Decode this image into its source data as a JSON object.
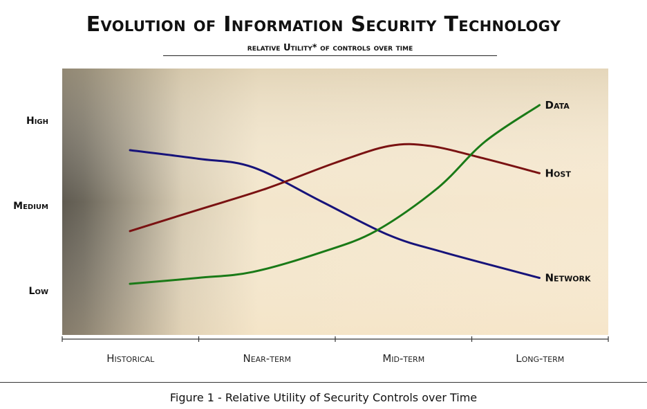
{
  "title": "Evolution of Information  Security Technology",
  "subtitle": "relative Utility* of controls over time",
  "caption": "Figure 1 - Relative Utility of Security Controls over Time",
  "colors": {
    "data": "#1a7a17",
    "host": "#7a1212",
    "network": "#17137a",
    "background_dark": "#5f5a50",
    "background_light": "#f6e8cf"
  },
  "chart_data": {
    "type": "line",
    "title": "Evolution of Information  Security Technology",
    "subtitle": "relative Utility* of controls over time",
    "categories": [
      "Historical",
      "Near-term",
      "Mid-term",
      "Long-term"
    ],
    "y_ticks": [
      "High",
      "Medium",
      "Low"
    ],
    "y_tick_values": [
      3,
      2,
      1
    ],
    "ylim": [
      0.5,
      3.5
    ],
    "xlim": [
      -0.5,
      3.5
    ],
    "grid": false,
    "legend": "labels at line ends",
    "series": [
      {
        "name": "Network",
        "color_key": "network",
        "points": [
          [
            0,
            2.65
          ],
          [
            0.5,
            2.55
          ],
          [
            0.9,
            2.45
          ],
          [
            1.4,
            2.05
          ],
          [
            1.9,
            1.65
          ],
          [
            2.3,
            1.45
          ],
          [
            3,
            1.15
          ]
        ]
      },
      {
        "name": "Host",
        "color_key": "host",
        "points": [
          [
            0,
            1.7
          ],
          [
            0.5,
            1.95
          ],
          [
            1,
            2.2
          ],
          [
            1.5,
            2.5
          ],
          [
            1.9,
            2.7
          ],
          [
            2.2,
            2.7
          ],
          [
            2.6,
            2.55
          ],
          [
            3,
            2.38
          ]
        ]
      },
      {
        "name": "Data",
        "color_key": "data",
        "points": [
          [
            0,
            1.08
          ],
          [
            0.5,
            1.15
          ],
          [
            0.9,
            1.22
          ],
          [
            1.4,
            1.45
          ],
          [
            1.8,
            1.7
          ],
          [
            2.25,
            2.2
          ],
          [
            2.6,
            2.75
          ],
          [
            3,
            3.18
          ]
        ]
      }
    ]
  }
}
